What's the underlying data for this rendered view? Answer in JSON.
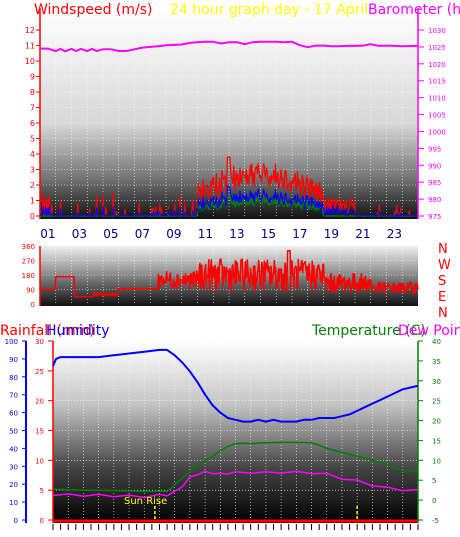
{
  "header": {
    "left_label": "Windspeed (m/s)",
    "center_label": "24 hour graph day - 17 April",
    "right_label": "Barometer (h"
  },
  "chart_data": [
    {
      "type": "line",
      "panel": "wind-barometer",
      "x_ticks": [
        "01",
        "03",
        "05",
        "07",
        "09",
        "11",
        "13",
        "15",
        "17",
        "19",
        "21",
        "23"
      ],
      "y_left": {
        "label": "Windspeed (m/s)",
        "ticks": [
          0,
          1,
          2,
          3,
          4,
          5,
          6,
          7,
          8,
          9,
          10,
          11,
          12
        ],
        "range": [
          0,
          12
        ]
      },
      "y_right": {
        "label": "Barometer (h",
        "ticks": [
          975,
          980,
          985,
          990,
          995,
          1000,
          1005,
          1010,
          1015,
          1020,
          1025,
          1030
        ],
        "range": [
          975,
          1030
        ]
      },
      "colors": {
        "barometer": "#ff00ff",
        "wind_gust": "#ff0000",
        "wind_avg": "#0000ff",
        "wind_low": "#008000"
      },
      "series": [
        {
          "key": "barometer",
          "x": [
            0,
            0.5,
            1,
            1.3,
            1.6,
            2,
            2.3,
            2.6,
            3,
            3.3,
            3.6,
            4,
            4.5,
            5,
            5.5,
            6,
            6.5,
            7,
            7.5,
            8,
            8.5,
            9,
            9.5,
            10,
            10.5,
            11,
            11.5,
            12,
            12.5,
            13,
            13.5,
            14,
            14.5,
            15,
            15.5,
            16,
            16.5,
            17,
            17.5,
            18,
            18.5,
            19,
            19.5,
            20,
            20.5,
            21,
            21.5,
            22,
            22.5,
            23,
            24
          ],
          "y": [
            1024.5,
            1024.5,
            1023.8,
            1024.4,
            1023.7,
            1024.4,
            1023.8,
            1024.4,
            1023.8,
            1024.4,
            1023.8,
            1024.3,
            1024.3,
            1023.8,
            1023.8,
            1024.3,
            1024.8,
            1025,
            1025.2,
            1025.5,
            1025.6,
            1025.7,
            1026.2,
            1026.4,
            1026.5,
            1026.5,
            1026,
            1026.4,
            1026.4,
            1025.8,
            1026.4,
            1026.5,
            1026.5,
            1026.5,
            1026.4,
            1026.5,
            1025.5,
            1024.9,
            1025.4,
            1025.4,
            1025.2,
            1025.2,
            1025.3,
            1025.3,
            1025.4,
            1025.8,
            1025.3,
            1025.4,
            1025.3,
            1025.2,
            1025.3
          ]
        }
      ]
    },
    {
      "type": "line",
      "panel": "wind-direction",
      "x_ticks": [
        "01",
        "03",
        "05",
        "07",
        "09",
        "11",
        "13",
        "15",
        "17",
        "19",
        "21",
        "23"
      ],
      "y_left": {
        "ticks": [
          0,
          90,
          180,
          270,
          360
        ],
        "range": [
          0,
          360
        ]
      },
      "compass_labels": [
        "N",
        "W",
        "S",
        "E",
        "N"
      ],
      "colors": {
        "direction": "#ff0000"
      }
    },
    {
      "type": "line",
      "panel": "rain-humidity-temperature",
      "left_label": "Rainfall (mm)",
      "humidity_label": "Humidity",
      "right_label": "Temperature (C)",
      "right_label_2": "Dew Point",
      "y_rain": {
        "ticks": [
          0,
          5,
          10,
          15,
          20,
          25,
          30
        ],
        "range": [
          0,
          30
        ]
      },
      "y_humidity": {
        "ticks": [
          0,
          10,
          20,
          30,
          40,
          50,
          60,
          70,
          80,
          90,
          100
        ],
        "range": [
          0,
          100
        ]
      },
      "y_temp": {
        "ticks": [
          -5,
          0,
          5,
          10,
          15,
          20,
          25,
          30,
          35,
          40
        ],
        "range": [
          -5,
          40
        ]
      },
      "annotation": "Sun Rise",
      "colors": {
        "humidity": "#0000ff",
        "temperature": "#008000",
        "dewpoint": "#ff00ff",
        "rain": "#ff0000",
        "sun": "#ffff00"
      },
      "series": [
        {
          "key": "humidity",
          "x": [
            0,
            0.2,
            0.5,
            1,
            2,
            3,
            4,
            5,
            6,
            7,
            7.5,
            8,
            8.5,
            9,
            9.5,
            10,
            10.5,
            11,
            11.5,
            12,
            12.5,
            13,
            13.5,
            14,
            14.5,
            15,
            15.5,
            16,
            16.5,
            17,
            17.5,
            18,
            18.5,
            19,
            19.5,
            20,
            20.5,
            21,
            21.5,
            22,
            22.5,
            23,
            23.5,
            24
          ],
          "y": [
            86,
            90,
            91,
            91,
            91,
            91,
            92,
            93,
            94,
            95,
            95,
            92,
            88,
            83,
            77,
            70,
            64,
            60,
            57,
            56,
            55,
            55,
            56,
            55,
            56,
            55,
            55,
            55,
            56,
            56,
            57,
            57,
            57,
            58,
            59,
            61,
            63,
            65,
            67,
            69,
            71,
            73,
            74,
            75
          ]
        },
        {
          "key": "temperature",
          "x": [
            0,
            1,
            2,
            3,
            4,
            5,
            6,
            7,
            7.5,
            8,
            8.5,
            9,
            9.5,
            10,
            10.5,
            11,
            11.5,
            12,
            12.5,
            13,
            14,
            15,
            16,
            17,
            17.5,
            18,
            19,
            20,
            21,
            22,
            22.5,
            23,
            24
          ],
          "y": [
            2.8,
            2.6,
            2.5,
            2.5,
            2.4,
            2.3,
            2.2,
            2.2,
            2.2,
            3.8,
            5.5,
            7.2,
            8.8,
            10,
            11,
            12.5,
            13.5,
            14.2,
            14.3,
            14.2,
            14.4,
            14.5,
            14.5,
            14.4,
            13.8,
            13,
            12,
            11,
            10,
            9,
            8,
            7.5,
            7.3
          ]
        },
        {
          "key": "dewpoint",
          "x": [
            0,
            1,
            2,
            3,
            4,
            5,
            6,
            7,
            7.5,
            8,
            8.5,
            9,
            9.5,
            10,
            10.5,
            11,
            11.5,
            12,
            13,
            14,
            15,
            16,
            17,
            18,
            19,
            20,
            21,
            22,
            23,
            24
          ],
          "y": [
            1.4,
            1.3,
            1.2,
            1.2,
            1.1,
            1,
            0.9,
            1.2,
            1.3,
            2,
            3.6,
            5.6,
            6.6,
            7,
            6.9,
            6.5,
            6.8,
            6.9,
            7,
            6.9,
            7,
            7,
            6.9,
            6.5,
            5.5,
            4.8,
            3.8,
            3,
            2.6,
            2.4
          ]
        }
      ]
    }
  ]
}
